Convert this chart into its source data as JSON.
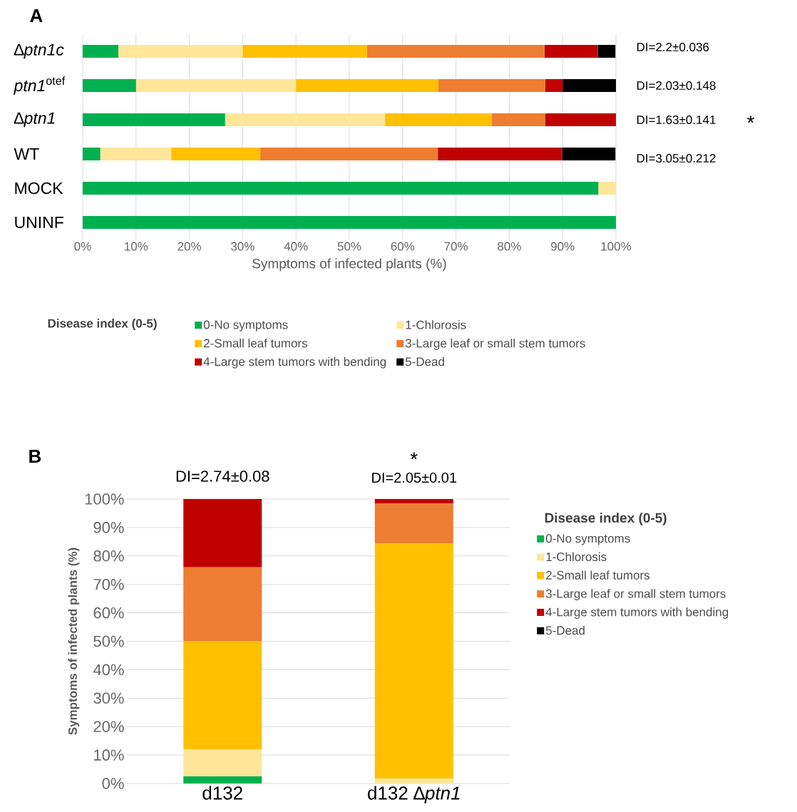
{
  "chart_data": [
    {
      "type": "bar",
      "title": "**A**",
      "stacked": true,
      "orientation": "horizontal",
      "categories": [
        "∆*ptn1c*",
        "*ptn1*$^{otef}$",
        "∆*ptn1*",
        "WT",
        "MOCK",
        "UNINF"
      ],
      "series": [
        {
          "name": "0-No symptoms",
          "color": "#00b050",
          "values": [
            6.7,
            10,
            26.7,
            3.3,
            96.7,
            100
          ]
        },
        {
          "name": "1-Chlorosis",
          "color": "#ffe699",
          "values": [
            23.3,
            30,
            30,
            13.3,
            3.3,
            0
          ]
        },
        {
          "name": "2-Small leaf tumors",
          "color": "#ffc000",
          "values": [
            23.3,
            26.7,
            20,
            16.7,
            0,
            0
          ]
        },
        {
          "name": "3-Large leaf or small stem tumors",
          "color": "#ed7d31",
          "values": [
            33.3,
            20,
            10,
            33.3,
            0,
            0
          ]
        },
        {
          "name": "4-Large stem tumors with bending",
          "color": "#c00000",
          "values": [
            10,
            3.3,
            13.3,
            23.3,
            0,
            0
          ]
        },
        {
          "name": "5-Dead",
          "color": "#000000",
          "values": [
            3.3,
            10,
            0,
            10,
            0,
            0
          ]
        }
      ],
      "xlim": [
        0,
        100
      ],
      "xticks": [
        {
          "value": 0,
          "label": "0%"
        },
        {
          "value": 10,
          "label": "10%"
        },
        {
          "value": 20,
          "label": "20%"
        },
        {
          "value": 30,
          "label": "30%"
        },
        {
          "value": 40,
          "label": "40%"
        },
        {
          "value": 50,
          "label": "50%"
        },
        {
          "value": 60,
          "label": "60%"
        },
        {
          "value": 70,
          "label": "70%"
        },
        {
          "value": 80,
          "label": "80%"
        },
        {
          "value": 90,
          "label": "90%"
        },
        {
          "value": 100,
          "label": "100%"
        }
      ],
      "xlabel": "Symptoms of infected plants (%)",
      "grid": "x",
      "legend": "bottom",
      "legend_title": "**Disease index (0-5)**",
      "annotations": [
        "DI=2.2±0.036",
        "DI=2.03±0.148",
        "DI=1.63±0.141",
        "DI=3.05±0.212",
        "*"
      ]
    },
    {
      "type": "bar",
      "title": "**B**",
      "stacked": true,
      "categories": [
        "d132",
        "d132 ∆*ptn1*"
      ],
      "series": [
        {
          "name": "0-No symptoms",
          "color": "#00b050",
          "values": [
            2.5,
            0
          ]
        },
        {
          "name": "1-Chlorosis",
          "color": "#ffe699",
          "values": [
            9.5,
            1.7
          ]
        },
        {
          "name": "2-Small leaf tumors",
          "color": "#ffc000",
          "values": [
            38,
            82.7
          ]
        },
        {
          "name": "3-Large leaf or small stem tumors",
          "color": "#ed7d31",
          "values": [
            26,
            14
          ]
        },
        {
          "name": "4-Large stem tumors with bending",
          "color": "#c00000",
          "values": [
            24,
            1.6
          ]
        },
        {
          "name": "5-Dead",
          "color": "#000000",
          "values": [
            0,
            0
          ]
        }
      ],
      "ylim": [
        0,
        100
      ],
      "yticks": [
        {
          "value": 0,
          "label": "0%"
        },
        {
          "value": 10,
          "label": "10%"
        },
        {
          "value": 20,
          "label": "20%"
        },
        {
          "value": 30,
          "label": "30%"
        },
        {
          "value": 40,
          "label": "40%"
        },
        {
          "value": 50,
          "label": "50%"
        },
        {
          "value": 60,
          "label": "60%"
        },
        {
          "value": 70,
          "label": "70%"
        },
        {
          "value": 80,
          "label": "80%"
        },
        {
          "value": 90,
          "label": "90%"
        },
        {
          "value": 100,
          "label": "100%"
        }
      ],
      "ylabel": "**Symptoms of infected plants (%)**",
      "grid": "y",
      "legend": "right",
      "legend_title": "**Disease index (0-5)**",
      "annotations": [
        "DI=2.74±0.08",
        "*",
        "DI=2.05±0.01"
      ]
    }
  ]
}
